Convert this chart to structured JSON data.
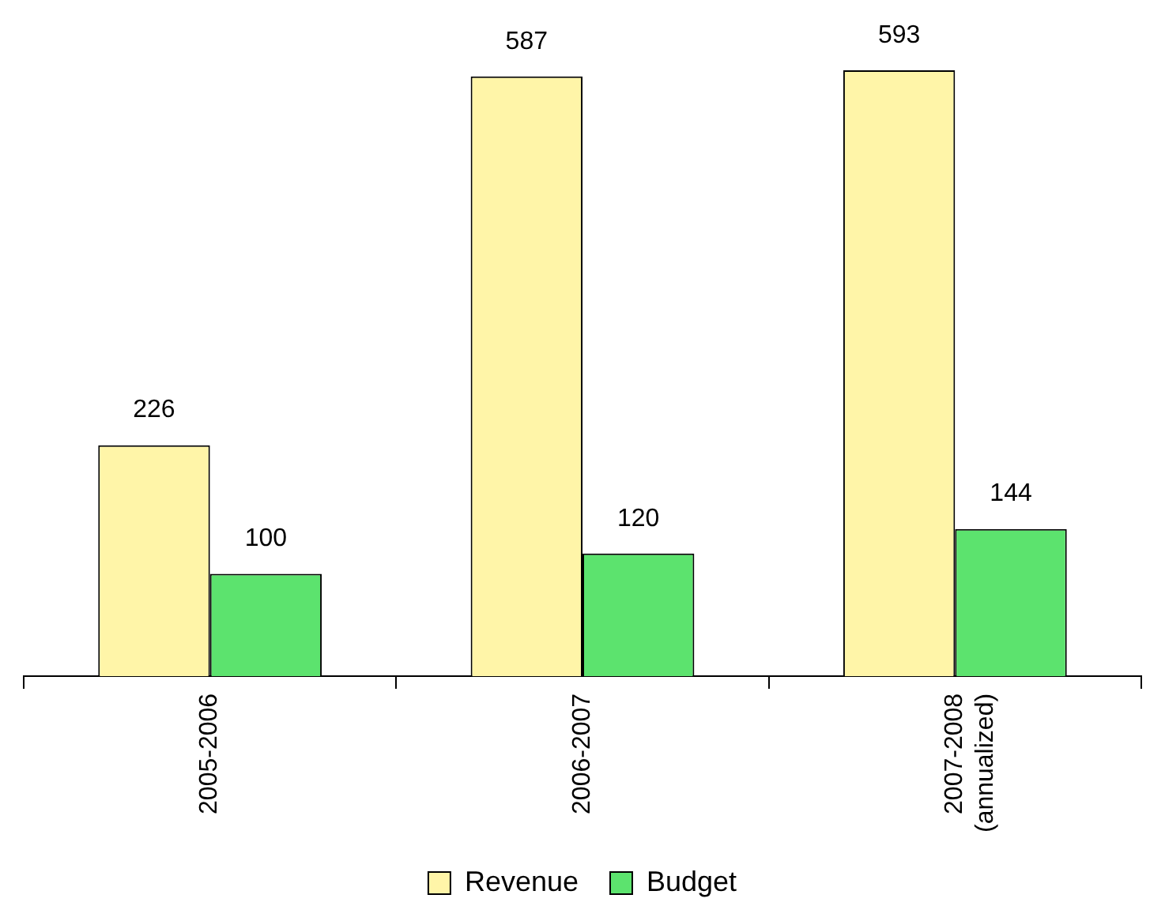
{
  "chart_data": {
    "type": "bar",
    "categories": [
      "2005-2006",
      "2006-2007",
      "2007-2008 (annualized)"
    ],
    "series": [
      {
        "name": "Revenue",
        "color": "#fff5a8",
        "values": [
          226,
          587,
          593
        ]
      },
      {
        "name": "Budget",
        "color": "#5ce36e",
        "values": [
          100,
          120,
          144
        ]
      }
    ],
    "data_labels": true,
    "grid": false,
    "legend": "bottom"
  }
}
